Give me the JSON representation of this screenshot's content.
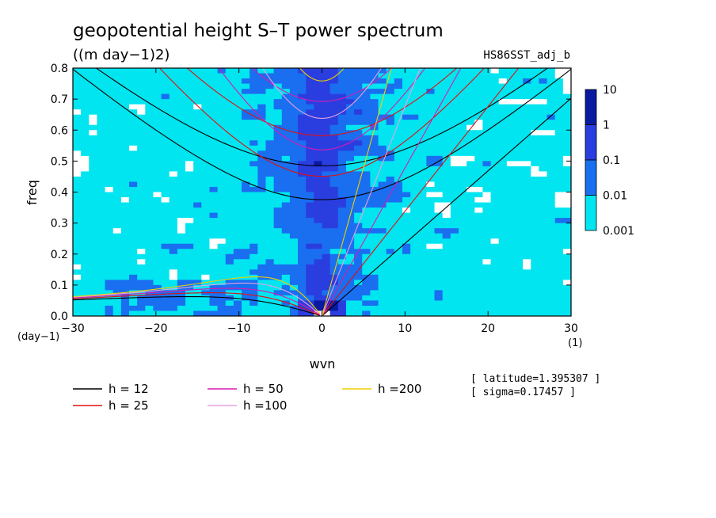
{
  "chart_data": {
    "type": "heatmap",
    "title": "geopotential height S–T power spectrum",
    "subtitle": "((m day−1)2)",
    "run_label": "HS86SST_adj_b",
    "xlabel": "wvn",
    "ylabel": "freq",
    "x_unit": "(1)",
    "y_unit": "(day−1)",
    "xlim": [
      -30,
      30
    ],
    "ylim": [
      0,
      0.8
    ],
    "x_ticks": [
      -30,
      -20,
      -10,
      0,
      10,
      20,
      30
    ],
    "x_tick_labels": [
      "−30",
      "−20",
      "−10",
      "0",
      "10",
      "20",
      "30"
    ],
    "y_ticks": [
      0,
      0.1,
      0.2,
      0.3,
      0.4,
      0.5,
      0.6,
      0.7,
      0.8
    ],
    "y_tick_labels": [
      "0.0",
      "0.1",
      "0.2",
      "0.3",
      "0.4",
      "0.5",
      "0.6",
      "0.7",
      "0.8"
    ],
    "colorbar": {
      "levels": [
        0.001,
        0.01,
        0.1,
        1,
        10
      ],
      "level_labels": [
        "0.001",
        "0.01",
        "0.1",
        "1",
        "10"
      ],
      "colors": [
        "#00e5f0",
        "#1a6ef0",
        "#2a3ee0",
        "#0a1aa0",
        "#5a14b4"
      ],
      "below_color": "#ffffff"
    },
    "dispersion_curves": [
      {
        "label": "h = 12",
        "h": 12,
        "color": "#000000"
      },
      {
        "label": "h = 25",
        "h": 25,
        "color": "#e01010"
      },
      {
        "label": "h = 50",
        "h": 50,
        "color": "#d81ab4"
      },
      {
        "label": "h =100",
        "h": 100,
        "color": "#e8a0e0"
      },
      {
        "label": "h =200",
        "h": 200,
        "color": "#f0d000"
      }
    ],
    "annotations": [
      "[ latitude=1.395307 ]",
      "[ sigma=0.17457 ]"
    ]
  }
}
